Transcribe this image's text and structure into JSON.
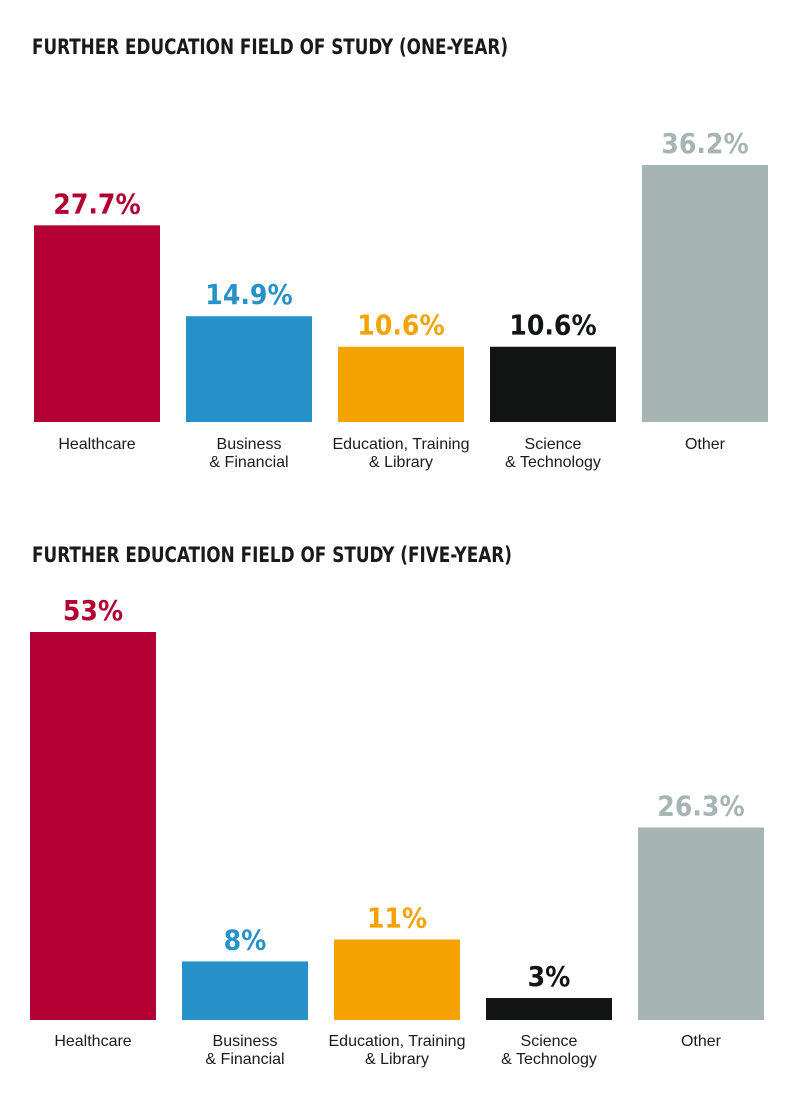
{
  "chart_data": [
    {
      "type": "bar",
      "title": "FURTHER EDUCATION FIELD OF STUDY (ONE-YEAR)",
      "categories": [
        [
          "Healthcare"
        ],
        [
          "Business",
          "& Financial"
        ],
        [
          "Education, Training",
          "& Library"
        ],
        [
          "Science",
          "& Technology"
        ],
        [
          "Other"
        ]
      ],
      "values": [
        27.7,
        14.9,
        10.6,
        10.6,
        36.2
      ],
      "value_labels": [
        "27.7%",
        "14.9%",
        "10.6%",
        "10.6%",
        "36.2%"
      ],
      "colors": [
        "#b10031",
        "#2792c9",
        "#f4a300",
        "#131515",
        "#a7b4b4"
      ]
    },
    {
      "type": "bar",
      "title": "FURTHER EDUCATION FIELD OF STUDY (FIVE-YEAR)",
      "categories": [
        [
          "Healthcare"
        ],
        [
          "Business",
          "& Financial"
        ],
        [
          "Education, Training",
          "& Library"
        ],
        [
          "Science",
          "& Technology"
        ],
        [
          "Other"
        ]
      ],
      "values": [
        53,
        8,
        11,
        3,
        26.3
      ],
      "value_labels": [
        "53%",
        "8%",
        "11%",
        "3%",
        "26.3%"
      ],
      "colors": [
        "#b10031",
        "#2792c9",
        "#f4a300",
        "#131515",
        "#a7b4b4"
      ]
    }
  ]
}
